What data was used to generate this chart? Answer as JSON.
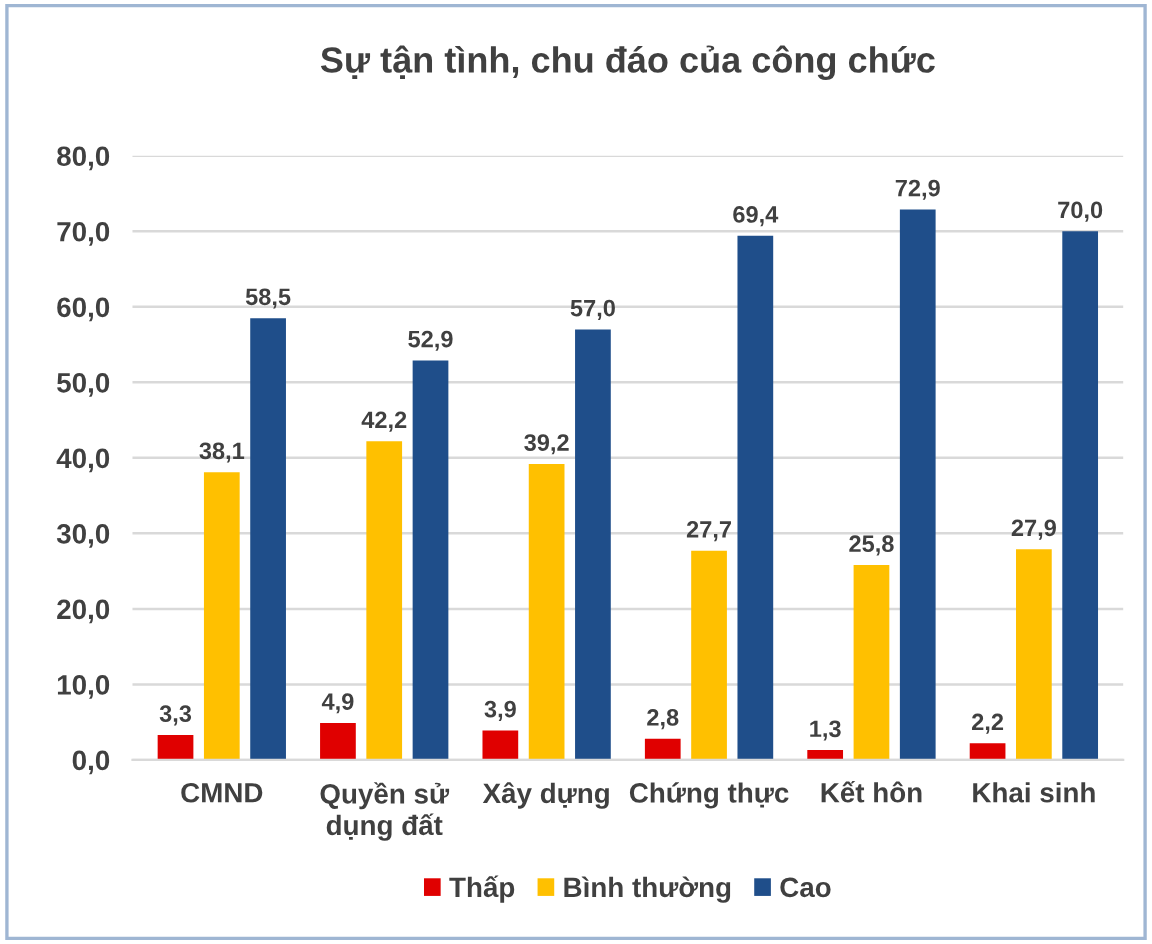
{
  "chart_data": {
    "type": "bar",
    "title": "Sự tận tình, chu đáo của công chức",
    "categories": [
      "CMND",
      "Quyền sử\ndụng đất",
      "Xây dựng",
      "Chứng thực",
      "Kết hôn",
      "Khai sinh"
    ],
    "series": [
      {
        "name": "Thấp",
        "color": "#e00000",
        "values": [
          3.3,
          4.9,
          3.9,
          2.8,
          1.3,
          2.2
        ],
        "value_labels": [
          "3,3",
          "4,9",
          "3,9",
          "2,8",
          "1,3",
          "2,2"
        ]
      },
      {
        "name": "Bình thường",
        "color": "#ffc000",
        "values": [
          38.1,
          42.2,
          39.2,
          27.7,
          25.8,
          27.9
        ],
        "value_labels": [
          "38,1",
          "42,2",
          "39,2",
          "27,7",
          "25,8",
          "27,9"
        ]
      },
      {
        "name": "Cao",
        "color": "#1f4e8a",
        "values": [
          58.5,
          52.9,
          57.0,
          69.4,
          72.9,
          70.0
        ],
        "value_labels": [
          "58,5",
          "52,9",
          "57,0",
          "69,4",
          "72,9",
          "70,0"
        ]
      }
    ],
    "ylim": [
      0,
      80
    ],
    "yticks": [
      {
        "value": 0,
        "label": "0,0"
      },
      {
        "value": 10,
        "label": "10,0"
      },
      {
        "value": 20,
        "label": "20,0"
      },
      {
        "value": 30,
        "label": "30,0"
      },
      {
        "value": 40,
        "label": "40,0"
      },
      {
        "value": 50,
        "label": "50,0"
      },
      {
        "value": 60,
        "label": "60,0"
      },
      {
        "value": 70,
        "label": "70,0"
      },
      {
        "value": 80,
        "label": "80,0"
      }
    ],
    "grid": "y",
    "legend": "bottom"
  }
}
